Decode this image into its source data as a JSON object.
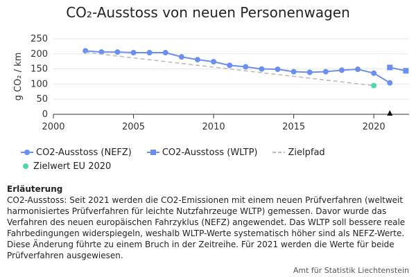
{
  "chart_data": {
    "type": "line",
    "title": "CO₂-Ausstoss von neuen Personenwagen",
    "ylabel": "g CO₂ / km",
    "xlabel": "",
    "xlim": [
      2000,
      2022.2
    ],
    "ylim": [
      0,
      250
    ],
    "x_ticks": [
      "2000",
      "2005",
      "2010",
      "2015",
      "2020"
    ],
    "y_ticks": [
      "0",
      "50",
      "100",
      "150",
      "200",
      "250"
    ],
    "grid": true,
    "legend_position": "bottom-left",
    "series": [
      {
        "name": "CO2-Ausstoss (NEFZ)",
        "color": "#6b8ff0",
        "marker": "circle",
        "x": [
          2002,
          2003,
          2004,
          2005,
          2006,
          2007,
          2008,
          2009,
          2010,
          2011,
          2012,
          2013,
          2014,
          2015,
          2016,
          2017,
          2018,
          2019,
          2020,
          2021
        ],
        "y": [
          210,
          206,
          206,
          204,
          204,
          204,
          190,
          181,
          174,
          162,
          157,
          150,
          149,
          141,
          139,
          141,
          146,
          149,
          136,
          104
        ]
      },
      {
        "name": "CO2-Ausstoss (WLTP)",
        "color": "#6b8ff0",
        "marker": "square",
        "x": [
          2021,
          2022
        ],
        "y": [
          155,
          144
        ]
      },
      {
        "name": "Zielpfad",
        "color": "#bbbbbb",
        "marker": "none",
        "dashed": true,
        "x": [
          2002,
          2020
        ],
        "y": [
          205,
          95
        ]
      },
      {
        "name": "Zielwert EU 2020",
        "color": "#4cd8a8",
        "marker": "circle",
        "x": [
          2020
        ],
        "y": [
          95
        ]
      }
    ],
    "annotations": [
      {
        "type": "triangle-marker",
        "x": 2021,
        "y": 0
      }
    ]
  },
  "note": {
    "title": "Erläuterung",
    "text": "CO2-Ausstoss: Seit 2021 werden die CO2-Emissionen mit einem neuen Prüfverfahren (weltweit harmonisiertes Prüfverfahren für leichte Nutzfahrzeuge WLTP) gemessen. Davor wurde das Verfahren des neuen europäischen Fahrzyklus (NEFZ) angewendet. Das WLTP soll bessere reale Fahrbedingungen widerspiegeln, weshalb WLTP-Werte systematisch höher sind als NEFZ-Werte. Diese Änderung führte zu einem Bruch in der Zeitreihe. Für 2021 werden die Werte für beide Prüfverfahren ausgewiesen."
  },
  "source": "Amt für Statistik Liechtenstein"
}
